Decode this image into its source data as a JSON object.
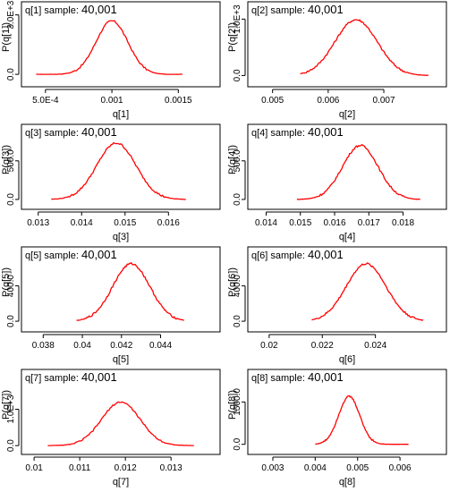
{
  "chart_data": [
    {
      "type": "line",
      "title_prefix": "q[1] sample:",
      "title_count": "40,001",
      "xlabel": "q[1]",
      "ylabel": "P(q[1])",
      "xlim": [
        0.00038,
        0.00172
      ],
      "ylim": [
        -400,
        3300
      ],
      "xticks": [
        0.0005,
        0.001,
        0.0015
      ],
      "xtick_labels": [
        "5.0E-4",
        "0.001",
        "0.0015"
      ],
      "yticks": [
        0,
        3000
      ],
      "ytick_labels": [
        "0.0",
        "3.0E+3"
      ],
      "curve": {
        "mean": 0.001,
        "sd": 0.00012,
        "peak": 2700,
        "min": 0.00043,
        "max": 0.00153
      }
    },
    {
      "type": "line",
      "title_prefix": "q[2] sample:",
      "title_count": "40,001",
      "xlabel": "q[2]",
      "ylabel": "P(q[2])",
      "xlim": [
        0.0047,
        0.0079
      ],
      "ylim": [
        -120,
        1180
      ],
      "xticks": [
        0.005,
        0.006,
        0.007
      ],
      "xtick_labels": [
        "0.005",
        "0.006",
        "0.007"
      ],
      "yticks": [
        0,
        1000
      ],
      "ytick_labels": [
        "0.0",
        "1.0E+3"
      ],
      "curve": {
        "mean": 0.0065,
        "sd": 0.00038,
        "peak": 990,
        "min": 0.0055,
        "max": 0.0078
      }
    },
    {
      "type": "line",
      "title_prefix": "q[3] sample:",
      "title_count": "40,001",
      "xlabel": "q[3]",
      "ylabel": "P(q[3])",
      "xlim": [
        0.0128,
        0.0169
      ],
      "ylim": [
        -70,
        880
      ],
      "xticks": [
        0.013,
        0.014,
        0.015,
        0.016
      ],
      "xtick_labels": [
        "0.013",
        "0.014",
        "0.015",
        "0.016"
      ],
      "yticks": [
        0,
        500
      ],
      "ytick_labels": [
        "0.0",
        "500.0"
      ],
      "curve": {
        "mean": 0.0148,
        "sd": 0.00045,
        "peak": 730,
        "min": 0.0133,
        "max": 0.0164
      }
    },
    {
      "type": "line",
      "title_prefix": "q[4] sample:",
      "title_count": "40,001",
      "xlabel": "q[4]",
      "ylabel": "P(q[4])",
      "xlim": [
        0.0137,
        0.0189
      ],
      "ylim": [
        -70,
        880
      ],
      "xticks": [
        0.014,
        0.015,
        0.016,
        0.017,
        0.018
      ],
      "xtick_labels": [
        "0.014",
        "0.015",
        "0.016",
        "0.017",
        "0.018"
      ],
      "yticks": [
        0,
        500
      ],
      "ytick_labels": [
        "0.0",
        "500.0"
      ],
      "curve": {
        "mean": 0.01675,
        "sd": 0.00052,
        "peak": 700,
        "min": 0.0149,
        "max": 0.0185
      }
    },
    {
      "type": "line",
      "title_prefix": "q[5] sample:",
      "title_count": "40,001",
      "xlabel": "q[5]",
      "ylabel": "P(q[5])",
      "xlim": [
        0.0373,
        0.0464
      ],
      "ylim": [
        -70,
        760
      ],
      "xticks": [
        0.038,
        0.04,
        0.042,
        0.044
      ],
      "xtick_labels": [
        "0.038",
        "0.04",
        "0.042",
        "0.044"
      ],
      "yticks": [
        0,
        400
      ],
      "ytick_labels": [
        "0.0",
        "400.0"
      ],
      "curve": {
        "mean": 0.0425,
        "sd": 0.00095,
        "peak": 650,
        "min": 0.0397,
        "max": 0.0452
      }
    },
    {
      "type": "line",
      "title_prefix": "q[6] sample:",
      "title_count": "40,001",
      "xlabel": "q[6]",
      "ylabel": "P(q[6])",
      "xlim": [
        0.0195,
        0.0262
      ],
      "ylim": [
        -70,
        760
      ],
      "xticks": [
        0.02,
        0.022,
        0.024
      ],
      "xtick_labels": [
        "0.02",
        "0.022",
        "0.024"
      ],
      "yticks": [
        0,
        400
      ],
      "ytick_labels": [
        "0.0",
        "400.0"
      ],
      "curve": {
        "mean": 0.02365,
        "sd": 0.00075,
        "peak": 650,
        "min": 0.0216,
        "max": 0.0258
      }
    },
    {
      "type": "line",
      "title_prefix": "q[7] sample:",
      "title_count": "40,001",
      "xlabel": "q[7]",
      "ylabel": "P(q[7])",
      "xlim": [
        0.0099,
        0.0138
      ],
      "ylim": [
        -120,
        1900
      ],
      "xticks": [
        0.01,
        0.011,
        0.012,
        0.013
      ],
      "xtick_labels": [
        "0.01",
        "0.011",
        "0.012",
        "0.013"
      ],
      "yticks": [
        0,
        1000
      ],
      "ytick_labels": [
        "0.0",
        "1.0E+3"
      ],
      "curve": {
        "mean": 0.0119,
        "sd": 0.00042,
        "peak": 1200,
        "min": 0.0103,
        "max": 0.0135
      }
    },
    {
      "type": "line",
      "title_prefix": "q[8] sample:",
      "title_count": "40,001",
      "xlabel": "q[8]",
      "ylabel": "P(q[8])",
      "xlim": [
        0.0026,
        0.0068
      ],
      "ylim": [
        -200,
        2400
      ],
      "xticks": [
        0.003,
        0.004,
        0.005,
        0.006
      ],
      "xtick_labels": [
        "0.003",
        "0.004",
        "0.005",
        "0.006"
      ],
      "yticks": [
        0,
        1500
      ],
      "ytick_labels": [
        "0.0",
        "1500.0"
      ],
      "curve": {
        "mean": 0.0048,
        "sd": 0.00025,
        "peak": 1700,
        "min": 0.004,
        "max": 0.0062
      }
    }
  ]
}
